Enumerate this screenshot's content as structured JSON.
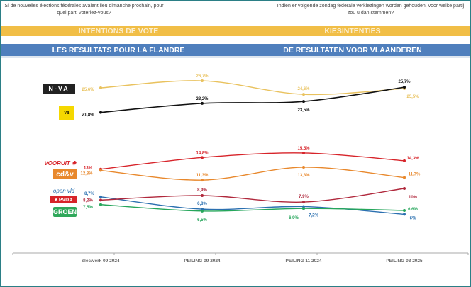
{
  "header": {
    "question_fr": "Si de nouvelles élections fédérales avaient lieu dimanche prochain, pour quel parti voteriez-vous?",
    "question_nl": "Indien er volgende zondag federale verkiezingen worden gehouden, voor welke partij zou u dan stemmen?",
    "title_fr": "INTENTIONS DE VOTE",
    "title_nl": "KIESINTENTIES",
    "subtitle_fr": "LES RESULTATS POUR LA FLANDRE",
    "subtitle_nl": "DE RESULTATEN VOOR VLAANDEREN"
  },
  "chart_data": {
    "type": "line",
    "categories": [
      "élec/verk 09 2024",
      "PEILING 09 2024",
      "PEILING 11 2024",
      "PEILING 03 2025"
    ],
    "ylim": [
      0,
      27
    ],
    "grid": false,
    "legend": "left (party logos)",
    "series": [
      {
        "name": "N-VA",
        "color": "#e9c25e",
        "values": [
          25.6,
          26.7,
          24.6,
          25.5
        ],
        "labels": [
          "25,6%",
          "26,7%",
          "24,6%",
          "25,5%"
        ]
      },
      {
        "name": "Vlaams Belang",
        "color": "#111111",
        "values": [
          21.8,
          23.2,
          23.5,
          25.7
        ],
        "labels": [
          "21,8%",
          "23,2%",
          "23,5%",
          "25,7%"
        ]
      },
      {
        "name": "Vooruit",
        "color": "#d7242a",
        "values": [
          13,
          14.8,
          15.5,
          14.3
        ],
        "labels": [
          "13%",
          "14,8%",
          "15,5%",
          "14,3%"
        ]
      },
      {
        "name": "cd&v",
        "color": "#e8882c",
        "values": [
          12.8,
          11.3,
          13.3,
          11.7
        ],
        "labels": [
          "12,8%",
          "11,3%",
          "13,3%",
          "11,7%"
        ]
      },
      {
        "name": "Open Vld",
        "color": "#2b70b0",
        "values": [
          8.7,
          6.8,
          7.2,
          6
        ],
        "labels": [
          "8,7%",
          "6,8%",
          "7,2%",
          "6%"
        ]
      },
      {
        "name": "PVDA",
        "color": "#b0283c",
        "values": [
          8.2,
          8.9,
          7.9,
          10
        ],
        "labels": [
          "8,2%",
          "8,9%",
          "7,9%",
          "10%"
        ]
      },
      {
        "name": "Groen",
        "color": "#26a65b",
        "values": [
          7.5,
          6.5,
          6.9,
          6.6
        ],
        "labels": [
          "7,5%",
          "6,5%",
          "6,9%",
          "6,6%"
        ]
      }
    ]
  }
}
